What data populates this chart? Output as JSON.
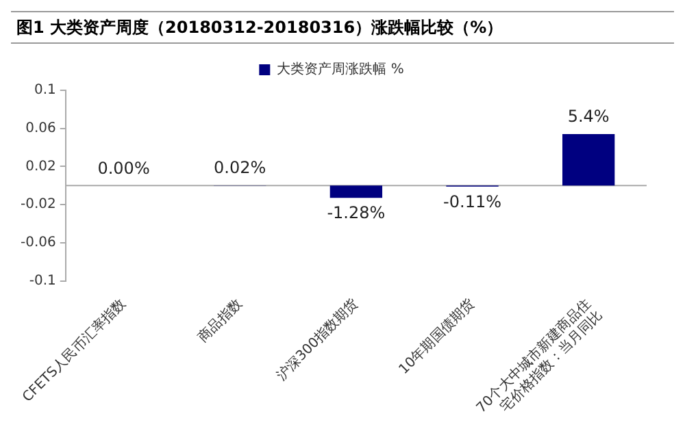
{
  "chart_data": {
    "type": "bar",
    "title": "图1  大类资产周度（20180312-20180316）涨跌幅比较（%）",
    "categories": [
      "CFETS人民币汇率指数",
      "商品指数",
      "沪深300指数期货",
      "10年期国债期货",
      "70个大中城市新建商品住宅价格指数：当月同比"
    ],
    "series": [
      {
        "name": "大类资产周涨跌幅 %",
        "color": "#000080",
        "values": [
          0,
          0.0002,
          -0.0128,
          -0.0011,
          0.054
        ],
        "value_labels": [
          "0.00%",
          "0.02%",
          "-1.28%",
          "-0.11%",
          "5.4%"
        ]
      }
    ],
    "ylim": [
      -0.1,
      0.1
    ],
    "yticks": [
      -0.1,
      -0.06,
      -0.02,
      0.02,
      0.06,
      0.1
    ],
    "grid": false,
    "legend": "top"
  }
}
